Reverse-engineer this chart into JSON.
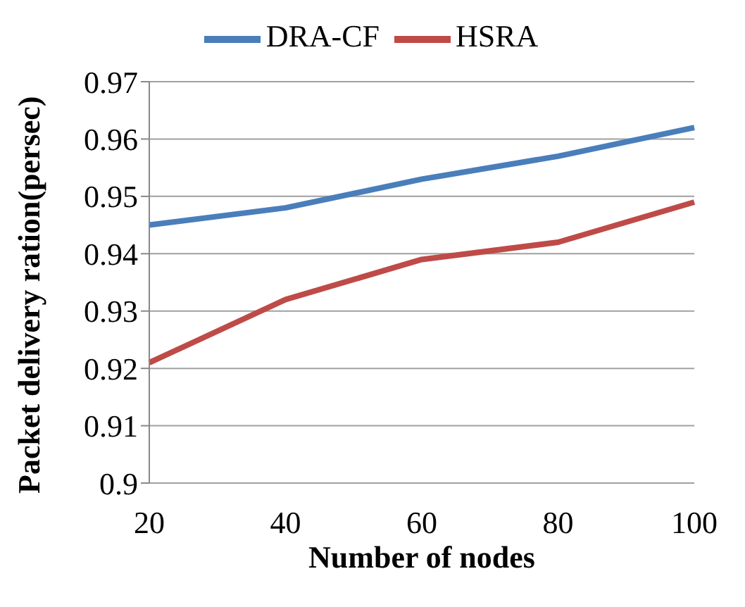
{
  "chart_data": {
    "type": "line",
    "xlabel": "Number of nodes",
    "ylabel": "Packet delivery ration(persec)",
    "categories": [
      "20",
      "40",
      "60",
      "80",
      "100"
    ],
    "series": [
      {
        "name": "DRA-CF",
        "color": "#4a7ebb",
        "values": [
          0.945,
          0.948,
          0.953,
          0.957,
          0.962
        ]
      },
      {
        "name": "HSRA",
        "color": "#be4b48",
        "values": [
          0.921,
          0.932,
          0.939,
          0.942,
          0.949
        ]
      }
    ],
    "ylim": [
      0.9,
      0.97
    ],
    "yticks": [
      0.9,
      0.91,
      0.92,
      0.93,
      0.94,
      0.95,
      0.96,
      0.97
    ],
    "grid": "y",
    "legend": "top",
    "marker": "none",
    "line_style": "solid"
  }
}
